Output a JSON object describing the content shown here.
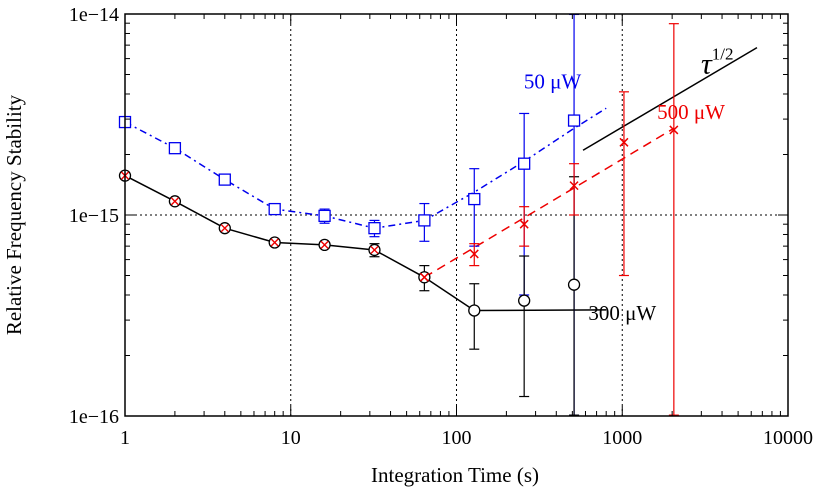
{
  "chart_data": {
    "type": "scatter",
    "xscale": "log",
    "yscale": "log",
    "xlim": [
      1,
      10000
    ],
    "ylim": [
      1e-16,
      1e-14
    ],
    "xlabel": "Integration Time (s)",
    "ylabel": "Relative Frequency Stability",
    "xticks": [
      {
        "value": 1,
        "label": "1"
      },
      {
        "value": 10,
        "label": "10"
      },
      {
        "value": 100,
        "label": "100"
      },
      {
        "value": 1000,
        "label": "1000"
      },
      {
        "value": 10000,
        "label": "10000"
      }
    ],
    "yticks": [
      {
        "value": 1e-16,
        "label": "1e−16"
      },
      {
        "value": 1e-15,
        "label": "1e−15"
      },
      {
        "value": 1e-14,
        "label": "1e−14"
      }
    ],
    "grid": "dotted major lines at x = 10, 100, 1000 and y = 1e-15",
    "series": [
      {
        "name": "50 μW",
        "color": "#0000ee",
        "marker": "square",
        "line_style": "dash-dot",
        "points": [
          {
            "x": 1,
            "y": 2.9e-15,
            "yerr": 0
          },
          {
            "x": 2,
            "y": 2.15e-15,
            "yerr": 0
          },
          {
            "x": 4,
            "y": 1.5e-15,
            "yerr": 0
          },
          {
            "x": 8,
            "y": 1.07e-15,
            "yerr": 0
          },
          {
            "x": 16,
            "y": 9.9e-16,
            "yerr": 8e-17
          },
          {
            "x": 32,
            "y": 8.6e-16,
            "yerr": 8e-17
          },
          {
            "x": 64,
            "y": 9.4e-16,
            "yerr": 2e-16
          },
          {
            "x": 128,
            "y": 1.2e-15,
            "yerr": 5e-16
          },
          {
            "x": 256,
            "y": 1.8e-15,
            "yerr": 1.4e-15
          },
          {
            "x": 512,
            "y": 2.95e-15,
            "yerr": 7e-15
          }
        ],
        "fit_line": [
          [
            1,
            2.9e-15
          ],
          [
            2,
            2.15e-15
          ],
          [
            4,
            1.5e-15
          ],
          [
            8,
            1.07e-15
          ],
          [
            16,
            9.9e-16
          ],
          [
            32,
            8.6e-16
          ],
          [
            64,
            9.4e-16
          ],
          [
            128,
            1.3e-15
          ],
          [
            256,
            1.85e-15
          ],
          [
            512,
            2.7e-15
          ],
          [
            800,
            3.4e-15
          ]
        ]
      },
      {
        "name": "300 μW",
        "color": "#000000",
        "marker": "circle",
        "line_style": "solid",
        "points": [
          {
            "x": 1,
            "y": 1.57e-15,
            "yerr": 0
          },
          {
            "x": 2,
            "y": 1.17e-15,
            "yerr": 0
          },
          {
            "x": 4,
            "y": 8.6e-16,
            "yerr": 0
          },
          {
            "x": 8,
            "y": 7.3e-16,
            "yerr": 0
          },
          {
            "x": 16,
            "y": 7.1e-16,
            "yerr": 0
          },
          {
            "x": 32,
            "y": 6.7e-16,
            "yerr": 5e-17
          },
          {
            "x": 64,
            "y": 4.9e-16,
            "yerr": 7e-17
          },
          {
            "x": 128,
            "y": 3.35e-16,
            "yerr": 1.2e-16
          },
          {
            "x": 256,
            "y": 3.75e-16,
            "yerr": 2.5e-16
          },
          {
            "x": 512,
            "y": 4.5e-16,
            "yerr": 1.1e-15
          }
        ],
        "fit_line": [
          [
            1,
            1.57e-15
          ],
          [
            2,
            1.17e-15
          ],
          [
            4,
            8.6e-16
          ],
          [
            8,
            7.3e-16
          ],
          [
            16,
            7.1e-16
          ],
          [
            32,
            6.7e-16
          ],
          [
            64,
            4.9e-16
          ],
          [
            128,
            3.35e-16
          ],
          [
            800,
            3.37e-16
          ]
        ]
      },
      {
        "name": "500 μW",
        "color": "#ee0000",
        "marker": "cross",
        "line_style": "dashed",
        "points": [
          {
            "x": 64,
            "y": 4.9e-16,
            "yerr": 0
          },
          {
            "x": 128,
            "y": 6.4e-16,
            "yerr": 8e-17
          },
          {
            "x": 256,
            "y": 9e-16,
            "yerr": 2e-16
          },
          {
            "x": 512,
            "y": 1.4e-15,
            "yerr": 4e-16
          },
          {
            "x": 1024,
            "y": 2.3e-15,
            "yerr": 1.8e-15
          },
          {
            "x": 2048,
            "y": 2.65e-15,
            "yerr": 6.3e-15
          }
        ],
        "fit_line": [
          [
            64,
            4.9e-16
          ],
          [
            2048,
            2.7e-15
          ]
        ]
      }
    ],
    "reference_line": {
      "label": "τ",
      "superscript": "1/2",
      "from": [
        580,
        2.1e-15
      ],
      "to": [
        6500,
        6.8e-15
      ],
      "color": "#000000"
    },
    "annotations": [
      {
        "series": 0,
        "text": "50 μW",
        "x": 380,
        "y": 4.25e-15,
        "color": "#0000ee"
      },
      {
        "series": 2,
        "text": "500 μW",
        "x": 2600,
        "y": 3e-15,
        "color": "#ee0000"
      },
      {
        "series": 1,
        "text": "300 μW",
        "x": 1000,
        "y": 3e-16,
        "color": "#000000"
      }
    ]
  }
}
